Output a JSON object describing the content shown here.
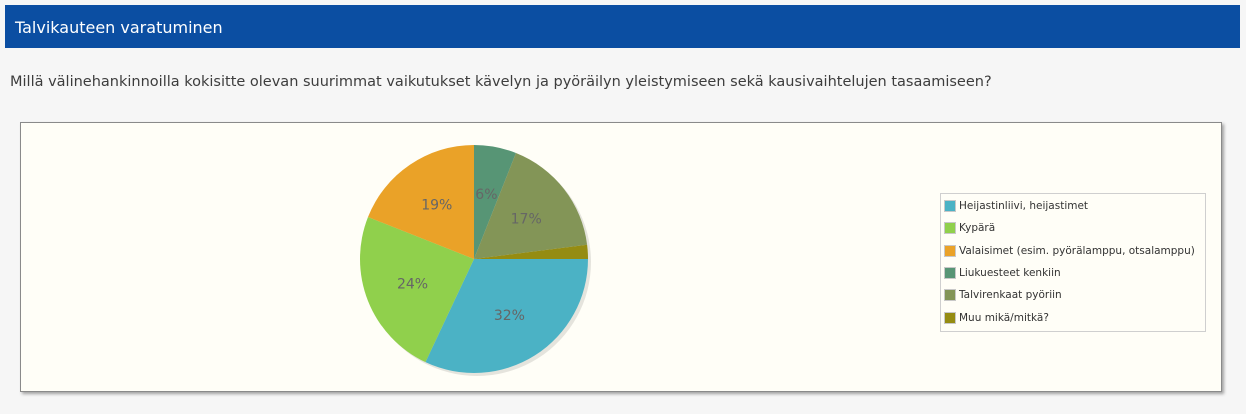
{
  "header": {
    "title": "Talvikauteen varatuminen"
  },
  "question": {
    "text": "Millä välinehankinnoilla kokisitte olevan suurimmat vaikutukset kävelyn ja pyöräilyn yleistymiseen sekä kausivaihtelujen tasaamiseen?"
  },
  "chart_data": {
    "type": "pie",
    "title": "",
    "legend_position": "right",
    "slices": [
      {
        "label": "Heijastinliivi, heijastimet",
        "value": 32,
        "display": "32%",
        "color": "#4bb2c5"
      },
      {
        "label": "Kypärä",
        "value": 24,
        "display": "24%",
        "color": "#90d04c"
      },
      {
        "label": "Valaisimet (esim. pyörälamppu, otsalamppu)",
        "value": 19,
        "display": "19%",
        "color": "#eaa228"
      },
      {
        "label": "Liukuesteet kenkiin",
        "value": 6,
        "display": "6%",
        "color": "#579575"
      },
      {
        "label": "Talvirenkaat pyöriin",
        "value": 17,
        "display": "17%",
        "color": "#839557"
      },
      {
        "label": "Muu mikä/mitkä?",
        "value": 2,
        "display": "",
        "color": "#958c12"
      }
    ]
  }
}
